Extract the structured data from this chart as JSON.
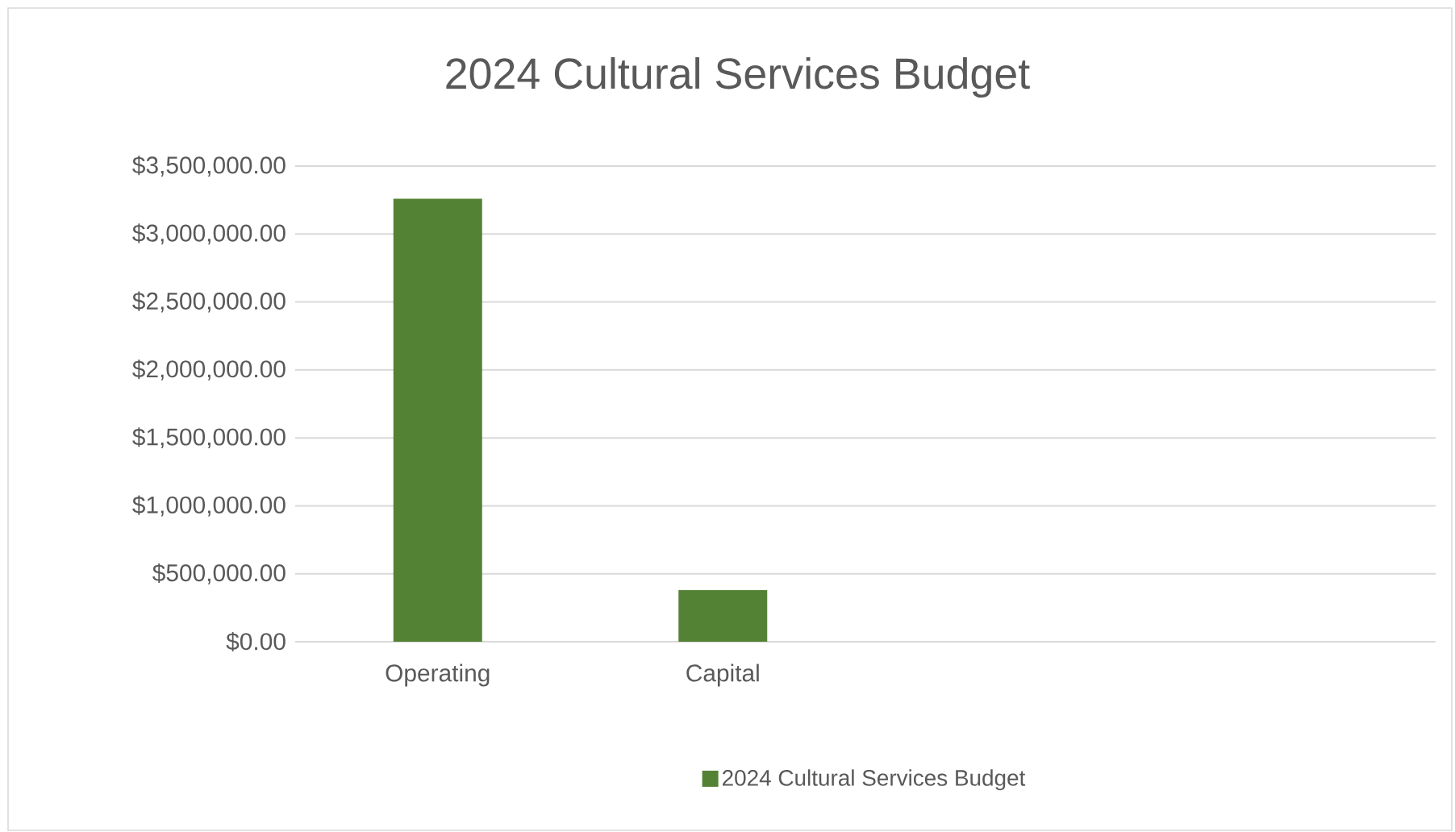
{
  "chart_data": {
    "type": "bar",
    "title": "2024 Cultural Services Budget",
    "categories": [
      "Operating",
      "Capital",
      null,
      null
    ],
    "series": [
      {
        "name": "2024 Cultural Services Budget",
        "color": "#548235",
        "values": [
          3260000,
          380000,
          null,
          null
        ]
      }
    ],
    "ylim": [
      0,
      3500000
    ],
    "yticks": [
      {
        "value": 0,
        "label": "$0.00"
      },
      {
        "value": 500000,
        "label": "$500,000.00"
      },
      {
        "value": 1000000,
        "label": "$1,000,000.00"
      },
      {
        "value": 1500000,
        "label": "$1,500,000.00"
      },
      {
        "value": 2000000,
        "label": "$2,000,000.00"
      },
      {
        "value": 2500000,
        "label": "$2,500,000.00"
      },
      {
        "value": 3000000,
        "label": "$3,000,000.00"
      },
      {
        "value": 3500000,
        "label": "$3,500,000.00"
      }
    ],
    "grid": "y",
    "legend": "bottom"
  }
}
